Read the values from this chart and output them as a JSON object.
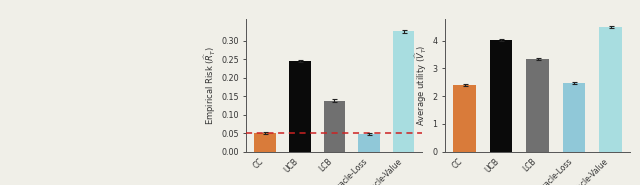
{
  "categories": [
    "CC",
    "UCB",
    "LCB",
    "Oracle-Loss",
    "Oracle-Value"
  ],
  "risk_values": [
    0.05,
    0.245,
    0.138,
    0.048,
    0.325
  ],
  "risk_errors": [
    0.003,
    0.003,
    0.004,
    0.003,
    0.003
  ],
  "utility_values": [
    2.4,
    4.02,
    3.35,
    2.48,
    4.48
  ],
  "utility_errors": [
    0.04,
    0.03,
    0.03,
    0.03,
    0.04
  ],
  "bar_colors": [
    "#D97B3A",
    "#0A0A0A",
    "#707070",
    "#90C8D8",
    "#A8DDE0"
  ],
  "risk_ylabel": "Empirical Risk ($\\widehat{R}_T$)",
  "utility_ylabel": "Average utility ($\\widehat{V}_T$)",
  "risk_ylim": [
    0,
    0.36
  ],
  "utility_ylim": [
    0,
    4.8
  ],
  "risk_yticks": [
    0.0,
    0.05,
    0.1,
    0.15,
    0.2,
    0.25,
    0.3
  ],
  "utility_yticks": [
    0,
    1,
    2,
    3,
    4
  ],
  "dashed_line_y": 0.05,
  "dashed_line_color": "#CC2222",
  "background_color": "#F0EFE8",
  "spine_color": "#555555",
  "tick_color": "#333333"
}
